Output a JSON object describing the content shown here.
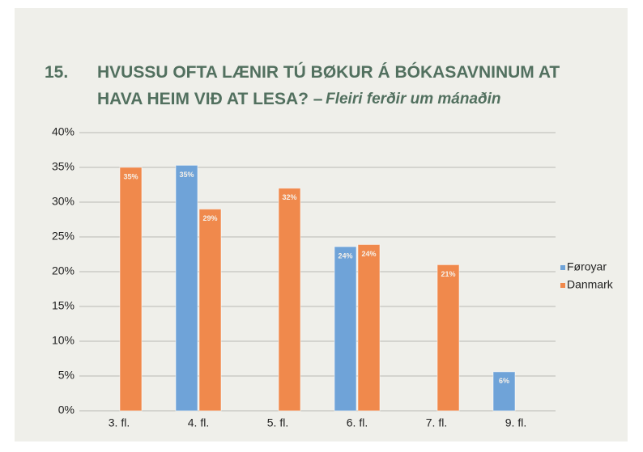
{
  "chart_data": {
    "type": "bar",
    "number": "15.",
    "title": [
      "HVUSSU OFTA LÆNIR TÚ BØKUR Á BÓKASAVNINUM AT",
      "HAVA HEIM VIÐ AT LESA? –"
    ],
    "subtitle": "Fleiri ferðir um mánaðin",
    "categories": [
      "3. fl.",
      "4. fl.",
      "5. fl.",
      "6. fl.",
      "7. fl.",
      "9. fl."
    ],
    "series": [
      {
        "name": "Føroyar",
        "color": "#6fa3d8",
        "values": [
          null,
          35.3,
          null,
          23.6,
          null,
          5.6
        ],
        "value_labels": [
          null,
          "35%",
          null,
          "24%",
          null,
          "6%"
        ]
      },
      {
        "name": "Danmark",
        "color": "#f0894c",
        "values": [
          35,
          29,
          32,
          23.9,
          21,
          null
        ],
        "value_labels": [
          "35%",
          "29%",
          "32%",
          "24%",
          "21%",
          null
        ]
      }
    ],
    "ylim": [
      0,
      40
    ],
    "yticks": [
      {
        "value": 0,
        "label": "0%"
      },
      {
        "value": 5,
        "label": "5%"
      },
      {
        "value": 10,
        "label": "10%"
      },
      {
        "value": 15,
        "label": "15%"
      },
      {
        "value": 20,
        "label": "20%"
      },
      {
        "value": 25,
        "label": "25%"
      },
      {
        "value": 30,
        "label": "30%"
      },
      {
        "value": 35,
        "label": "35%"
      },
      {
        "value": 40,
        "label": "40%"
      }
    ],
    "grid": true,
    "legend": "right"
  }
}
